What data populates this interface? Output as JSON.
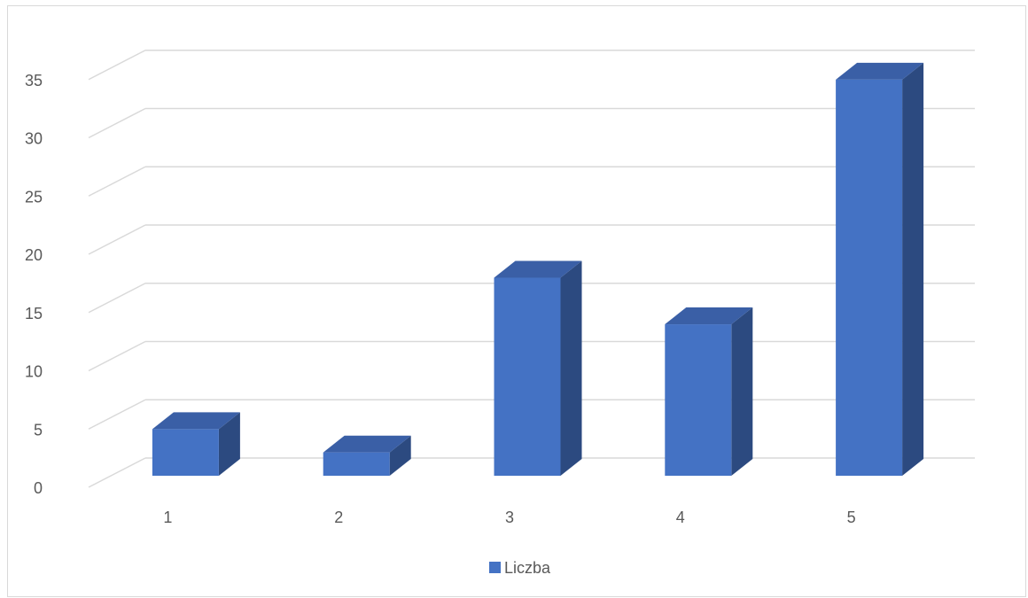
{
  "chart_data": {
    "type": "bar",
    "style": "3d-column",
    "categories": [
      "1",
      "2",
      "3",
      "4",
      "5"
    ],
    "series": [
      {
        "name": "Liczba",
        "values": [
          4,
          2,
          17,
          13,
          34
        ]
      }
    ],
    "ylim": [
      0,
      35
    ],
    "y_ticks": [
      "0",
      "5",
      "10",
      "15",
      "20",
      "25",
      "30",
      "35"
    ],
    "y_tick_values": [
      0,
      5,
      10,
      15,
      20,
      25,
      30,
      35
    ],
    "grid": true,
    "legend": "bottom",
    "colors": {
      "front": "#4472c4",
      "side": "#2c4a80",
      "top": "#3a5fa6",
      "grid": "#d9d9d9",
      "text": "#595959"
    }
  }
}
